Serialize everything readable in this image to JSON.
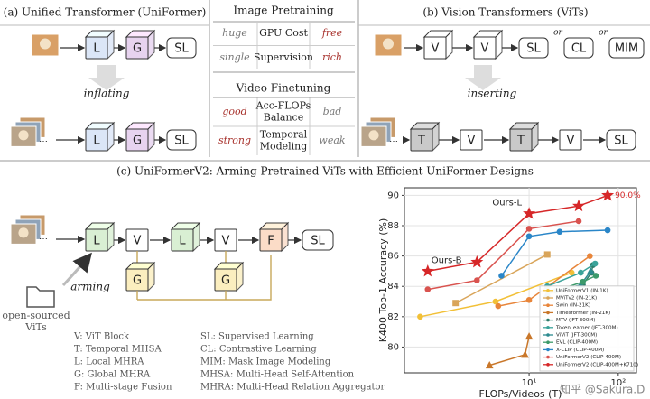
{
  "panel_a": {
    "title": "(a) Unified Transformer (UniFormer)",
    "image_blocks": [
      "L",
      "G",
      "SL"
    ],
    "action": "inflating",
    "video_blocks": [
      "L",
      "G",
      "SL"
    ]
  },
  "comparison": {
    "image_header": "Image Pretraining",
    "image_rows": [
      [
        "huge",
        [
          "GPU Cost"
        ],
        "free"
      ],
      [
        "single",
        [
          "Supervision"
        ],
        "rich"
      ]
    ],
    "video_header": "Video Finetuning",
    "video_rows": [
      [
        "good",
        [
          "Acc-FLOPs",
          "Balance"
        ],
        "bad"
      ],
      [
        "strong",
        [
          "Temporal",
          "Modeling"
        ],
        "weak"
      ]
    ]
  },
  "panel_b": {
    "title": "(b) Vision Transformers (ViTs)",
    "image_blocks": [
      "V",
      "V"
    ],
    "objectives": [
      "SL",
      "CL",
      "MIM"
    ],
    "or": [
      "or",
      "or"
    ],
    "action": "inserting",
    "video_blocks": [
      "T",
      "V",
      "T",
      "V",
      "SL"
    ]
  },
  "panel_c": {
    "title": "(c) UniFormerV2: Arming Pretrained ViTs with Efficient UniFormer Designs",
    "blocks": [
      "L",
      "V",
      "L",
      "V",
      "F",
      "SL"
    ],
    "global_blocks": [
      "G",
      "G"
    ],
    "action": "arming",
    "source": [
      "open-sourced",
      "ViTs"
    ],
    "legend_left": [
      "V: ViT Block",
      "T: Temporal MHSA",
      "L: Local MHRA",
      "G: Global MHRA",
      "F: Multi-stage Fusion"
    ],
    "legend_right": [
      "SL: Supervised Learning",
      "CL: Contrastive Learning",
      "MIM: Mask Image Modeling",
      "MHSA: Multi-Head Self-Attention",
      "MHRA: Multi-Head Relation Aggregator"
    ]
  },
  "chart_data": {
    "type": "line",
    "x_label": "FLOPs/Videos (T)",
    "y_label": "K400 Top-1 Accuracy (%)",
    "x_scale": "log",
    "xlim": [
      0.4,
      160
    ],
    "xticks": [
      {
        "value": 10,
        "label": "10¹"
      },
      {
        "value": 100,
        "label": "10²"
      }
    ],
    "ylim": [
      78.3,
      90.5
    ],
    "yticks": [
      80,
      82,
      84,
      86,
      88,
      90
    ],
    "grid": true,
    "legend": "lower right",
    "annotations": [
      "Ours-B",
      "Ours-L"
    ],
    "series": [
      {
        "name": "UniFormerV1 (IN-1K)",
        "color": "#f2c037",
        "marker": "circle",
        "x": [
          0.6,
          4.2,
          30
        ],
        "values": [
          82.0,
          83.0,
          84.9
        ]
      },
      {
        "name": "MViTv2 (IN-21K)",
        "color": "#d9a55a",
        "marker": "square",
        "x": [
          1.5,
          16
        ],
        "values": [
          82.9,
          86.1
        ]
      },
      {
        "name": "Swin (IN-21K)",
        "color": "#e8853a",
        "marker": "circle",
        "x": [
          4.5,
          10,
          48
        ],
        "values": [
          82.7,
          83.1,
          86.0
        ]
      },
      {
        "name": "Timesformer (IN-21K)",
        "color": "#c9772a",
        "marker": "triangle",
        "x": [
          3.6,
          9,
          10
        ],
        "values": [
          78.8,
          79.5,
          80.7
        ]
      },
      {
        "name": "MTV (JFT-300M)",
        "color": "#2e7d6b",
        "marker": "circle",
        "x": [
          40,
          50,
          52
        ],
        "values": [
          84.1,
          84.9,
          85.4
        ]
      },
      {
        "name": "TokenLearner (JFT-300M)",
        "color": "#3aa39a",
        "marker": "circle",
        "x": [
          16,
          38,
          55
        ],
        "values": [
          84.0,
          84.9,
          85.5
        ]
      },
      {
        "name": "ViViT (JFT-300M)",
        "color": "#2c8a8f",
        "marker": "triangle",
        "x": [
          16,
          38,
          49
        ],
        "values": [
          83.5,
          84.1,
          85.0
        ]
      },
      {
        "name": "EVL (CLIP-400M)",
        "color": "#3c9a6a",
        "marker": "circle",
        "x": [
          20,
          40,
          56
        ],
        "values": [
          83.7,
          84.3,
          84.7
        ]
      },
      {
        "name": "X-CLIP (CLIP-400M)",
        "color": "#2a86c8",
        "marker": "circle",
        "x": [
          4.9,
          10,
          22,
          76
        ],
        "values": [
          84.7,
          87.3,
          87.6,
          87.7
        ]
      },
      {
        "name": "UniFormerV2 (CLIP-400M)",
        "color": "#d9534f",
        "marker": "circle",
        "x": [
          0.73,
          2.6,
          10,
          36
        ],
        "values": [
          83.8,
          84.4,
          87.8,
          88.3
        ]
      },
      {
        "name": "UniFormerV2 (CLIP-400M+K710)",
        "color": "#d62728",
        "marker": "star",
        "x": [
          0.73,
          2.6,
          10,
          36,
          76
        ],
        "values": [
          85.0,
          85.6,
          88.8,
          89.3,
          90.0
        ],
        "value_labels": [
          null,
          null,
          null,
          null,
          "90.0%"
        ]
      }
    ]
  },
  "watermark": "知乎 @Sakura.D"
}
